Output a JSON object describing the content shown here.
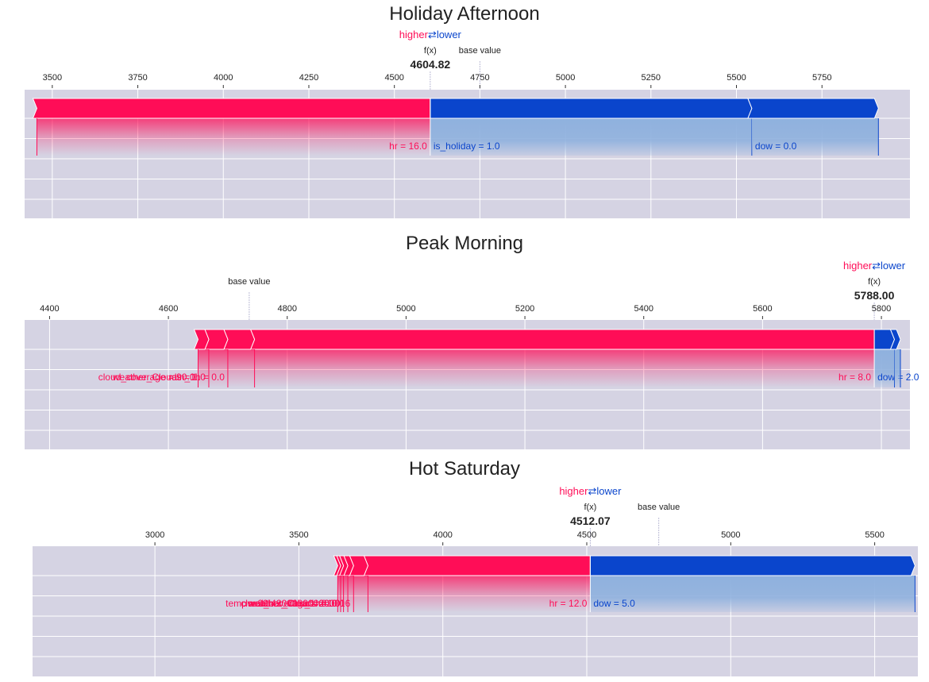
{
  "colors": {
    "positive": "#ff0d57",
    "negative": "#0a45cc",
    "negative_light": "#8fb1de",
    "panel_bg": "#d5d3e3",
    "grid": "#ffffff",
    "text": "#222222"
  },
  "chart_data": [
    {
      "type": "force",
      "title": "Holiday Afternoon",
      "higher_label": "higher",
      "lower_label": "lower",
      "arrow_glyph": "⇄",
      "fx_label": "f(x)",
      "fx_value": 4604.82,
      "fx_text": "4604.82",
      "base_label": "base value",
      "base_value": 4750,
      "xlim": [
        3440,
        5970
      ],
      "ticks": [
        3500,
        3750,
        4000,
        4250,
        4500,
        4750,
        5000,
        5250,
        5500,
        5750
      ],
      "tick_labels": [
        "3500",
        "3750",
        "4000",
        "4250",
        "4500",
        "4750",
        "5000",
        "5250",
        "5500",
        "5750"
      ],
      "positive_features": [
        {
          "label": "hr = 16.0",
          "start": 4604.82,
          "end": 3455
        }
      ],
      "negative_features": [
        {
          "label": "is_holiday = 1.0",
          "start": 4604.82,
          "end": 5545
        },
        {
          "label": "dow = 0.0",
          "start": 5545,
          "end": 5915
        }
      ]
    },
    {
      "type": "force",
      "title": "Peak Morning",
      "higher_label": "higher",
      "lower_label": "lower",
      "arrow_glyph": "⇄",
      "fx_label": "f(x)",
      "fx_value": 5788.0,
      "fx_text": "5788.00",
      "base_label": "base value",
      "base_value": 4736,
      "xlim": [
        4358,
        5832
      ],
      "ticks": [
        4400,
        4600,
        4800,
        5000,
        5200,
        5400,
        5600,
        5800
      ],
      "tick_labels": [
        "4400",
        "4600",
        "4800",
        "5000",
        "5200",
        "5400",
        "5600",
        "5800"
      ],
      "positive_features": [
        {
          "label": "hr = 8.0",
          "start": 5788.0,
          "end": 4745
        },
        {
          "label": "rain_1h = 0.0",
          "start": 4745,
          "end": 4700
        },
        {
          "label": "weather_Clouds = 1.0",
          "start": 4700,
          "end": 4668
        },
        {
          "label": "cloud_coverage = 90.0",
          "start": 4668,
          "end": 4650
        }
      ],
      "negative_features": [
        {
          "label": "dow = 2.0",
          "start": 5788.0,
          "end": 5822
        },
        {
          "label": "",
          "start": 5822,
          "end": 5832
        }
      ]
    },
    {
      "type": "force",
      "title": "Hot Saturday",
      "higher_label": "higher",
      "lower_label": "lower",
      "arrow_glyph": "⇄",
      "fx_label": "f(x)",
      "fx_value": 4512.07,
      "fx_text": "4512.07",
      "base_label": "base value",
      "base_value": 4750,
      "xlim": [
        2575,
        5650
      ],
      "ticks": [
        3000,
        3500,
        4000,
        4500,
        5000,
        5500
      ],
      "tick_labels": [
        "3000",
        "3500",
        "4000",
        "4500",
        "5000",
        "5500"
      ],
      "positive_features": [
        {
          "label": "hr = 12.0",
          "start": 4512.07,
          "end": 3740
        },
        {
          "label": "temp = 29.420000000000016",
          "start": 3740,
          "end": 3690
        },
        {
          "label": "rain_1h = 0.0",
          "start": 3690,
          "end": 3670
        },
        {
          "label": "weather_Clouds = 1.0",
          "start": 3670,
          "end": 3655
        },
        {
          "label": "cloud_coverage = 20.0",
          "start": 3655,
          "end": 3645
        },
        {
          "label": "weather_Clear = 0.0",
          "start": 3645,
          "end": 3635
        }
      ],
      "negative_features": [
        {
          "label": "dow = 5.0",
          "start": 4512.07,
          "end": 5640
        }
      ]
    }
  ]
}
